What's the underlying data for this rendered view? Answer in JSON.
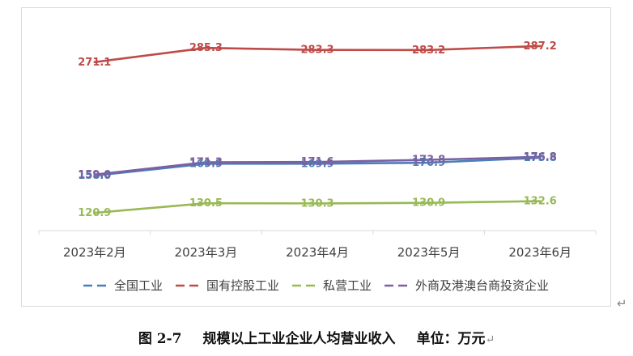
{
  "chart_data": {
    "type": "line",
    "categories": [
      "2023年2月",
      "2023年3月",
      "2023年4月",
      "2023年5月",
      "2023年6月"
    ],
    "series": [
      {
        "name": "全国工业",
        "color": "#4a7ebb",
        "values": [
          158.0,
          169.9,
          169.9,
          170.9,
          175.8
        ]
      },
      {
        "name": "国有控股工业",
        "color": "#be4b48",
        "values": [
          271.1,
          285.3,
          283.3,
          283.2,
          287.2
        ]
      },
      {
        "name": "私营工业",
        "color": "#98b954",
        "values": [
          120.9,
          130.5,
          130.3,
          130.9,
          132.6
        ]
      },
      {
        "name": "外商及港澳台商投资企业",
        "color": "#7d60a0",
        "values": [
          159.0,
          171.3,
          171.6,
          173.8,
          176.8
        ]
      }
    ],
    "label_texts": [
      [
        "158.0",
        "169.9",
        "169.9",
        "170.9",
        "175.8"
      ],
      [
        "271.1",
        "285.3",
        "283.3",
        "283.2",
        "287.2"
      ],
      [
        "120.9",
        "130.5",
        "130.3",
        "130.9",
        "132.6"
      ],
      [
        "159.0",
        "171.3",
        "171.6",
        "173.8",
        "176.8"
      ]
    ],
    "title": "",
    "xlabel": "",
    "ylabel": "",
    "ylim": [
      100,
      300
    ],
    "grid": false,
    "legend_position": "bottom"
  },
  "caption": {
    "figure_number": "图 2-7",
    "title": "规模以上工业企业人均营业收入",
    "unit": "单位：万元"
  }
}
